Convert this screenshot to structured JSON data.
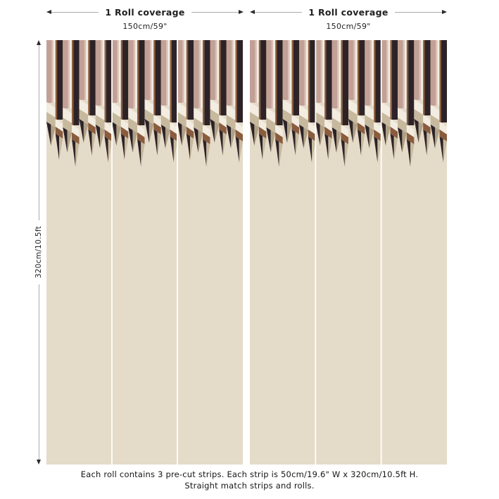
{
  "top_dimensions": {
    "left": {
      "label": "1 Roll coverage",
      "sublabel": "150cm/59\""
    },
    "right": {
      "label": "1 Roll coverage",
      "sublabel": "150cm/59\""
    }
  },
  "side_dimension": {
    "label": "320cm/10.5ft"
  },
  "caption": {
    "line1": "Each roll contains 3 pre-cut strips.  Each strip is 50cm/19.6\" W x 320cm/10.5ft H.",
    "line2": "Straight match strips and rolls."
  },
  "panels": [
    {
      "name": "roll-1",
      "strips_per_roll": 3
    },
    {
      "name": "roll-2",
      "strips_per_roll": 3
    }
  ],
  "palette": {
    "page_background": "#ffffff",
    "panel_base": "#e5dbc9",
    "stripe_mauve": "#c2a096",
    "stripe_light_pink": "#d9c0b6",
    "stripe_cream": "#f3ece0",
    "stripe_brown": "#8a5c3e",
    "stripe_dark": "#2d2327",
    "chevron_tan": "#c7b99e",
    "tip_facet": "#b0a186",
    "strip_divider": "#ffffff",
    "dimension_line": "#ababab",
    "text_color": "#1f1f1f"
  }
}
